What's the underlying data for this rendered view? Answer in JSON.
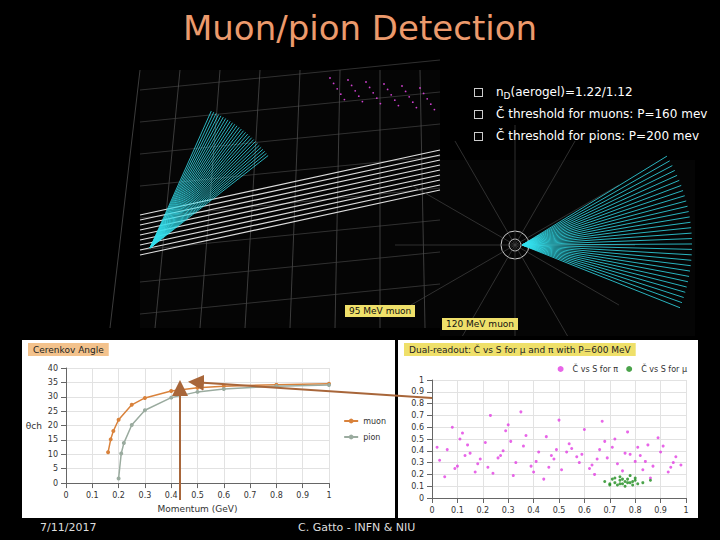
{
  "slide": {
    "title": "Muon/pion Detection",
    "bullets": [
      [
        {
          "text": "n"
        },
        {
          "sub": "D"
        },
        {
          "text": "(aerogel)=1.22/1.12"
        }
      ],
      [
        {
          "text": "Č threshold for muons: P=160 mev"
        }
      ],
      [
        {
          "text": "Č threshold for pions: P=200 mev"
        }
      ]
    ],
    "images": [
      {
        "caption": "95 MeV muon"
      },
      {
        "caption": "120 MeV muon"
      }
    ],
    "footer": {
      "date": "7/11/2017",
      "author": "C. Gatto - INFN & NIU"
    }
  },
  "chart_data": [
    {
      "type": "line",
      "title": "Cerenkov Angle",
      "xlabel": "Momentum (GeV)",
      "ylabel": "θch",
      "xlim": [
        0,
        1
      ],
      "xticks": [
        0,
        0.1,
        0.2,
        0.3,
        0.4,
        0.5,
        0.6,
        0.7,
        0.8,
        0.9,
        1
      ],
      "ylim": [
        0,
        40
      ],
      "yticks": [
        0,
        5,
        10,
        15,
        20,
        25,
        30,
        35,
        40
      ],
      "grid": true,
      "legend": "right",
      "series": [
        {
          "name": "muon",
          "color": "#d9823b",
          "marker": "circle",
          "x": [
            0.16,
            0.17,
            0.18,
            0.2,
            0.25,
            0.3,
            0.4,
            0.5,
            0.6,
            0.8,
            1.0
          ],
          "values": [
            10.7,
            15.2,
            18.1,
            22.0,
            27.2,
            29.6,
            32.0,
            33.1,
            33.7,
            34.2,
            34.5
          ]
        },
        {
          "name": "pion",
          "color": "#9aab9f",
          "marker": "circle",
          "x": [
            0.2,
            0.21,
            0.22,
            0.25,
            0.3,
            0.4,
            0.5,
            0.6,
            0.8,
            1.0
          ],
          "values": [
            1.6,
            10.3,
            13.9,
            20.2,
            25.3,
            29.7,
            31.7,
            32.7,
            33.7,
            34.1
          ]
        }
      ]
    },
    {
      "type": "scatter",
      "title": "Dual-readout: Č vs S for μ and π with P=600 MeV",
      "xlim": [
        0,
        1
      ],
      "xticks": [
        0,
        0.1,
        0.2,
        0.3,
        0.4,
        0.5,
        0.6,
        0.7,
        0.8,
        0.9,
        1
      ],
      "ylim": [
        0,
        1
      ],
      "yticks": [
        0,
        0.1,
        0.2,
        0.3,
        0.4,
        0.5,
        0.6,
        0.7,
        0.8,
        0.9,
        1
      ],
      "grid": true,
      "legend": "upper right",
      "series": [
        {
          "name": "Č vs S for π",
          "color": "#e23ee2",
          "x": [
            0.03,
            0.06,
            0.09,
            0.12,
            0.15,
            0.18,
            0.21,
            0.24,
            0.27,
            0.3,
            0.33,
            0.36,
            0.39,
            0.42,
            0.45,
            0.48,
            0.51,
            0.54,
            0.57,
            0.6,
            0.63,
            0.66,
            0.69,
            0.72,
            0.75,
            0.78,
            0.81,
            0.84,
            0.87,
            0.9,
            0.93,
            0.96,
            0.05,
            0.1,
            0.14,
            0.19,
            0.23,
            0.28,
            0.32,
            0.37,
            0.41,
            0.46,
            0.5,
            0.55,
            0.59,
            0.64,
            0.68,
            0.73,
            0.77,
            0.82,
            0.86,
            0.91,
            0.95,
            0.08,
            0.17,
            0.26,
            0.35,
            0.44,
            0.53,
            0.62,
            0.71,
            0.8,
            0.89,
            0.98,
            0.02,
            0.13,
            0.22,
            0.31,
            0.4,
            0.49,
            0.58,
            0.67,
            0.76,
            0.85,
            0.94,
            0.11,
            0.29,
            0.47,
            0.65,
            0.83
          ],
          "values": [
            0.32,
            0.41,
            0.25,
            0.55,
            0.38,
            0.29,
            0.47,
            0.21,
            0.36,
            0.62,
            0.3,
            0.44,
            0.27,
            0.39,
            0.52,
            0.33,
            0.24,
            0.46,
            0.35,
            0.58,
            0.28,
            0.41,
            0.34,
            0.5,
            0.23,
            0.37,
            0.43,
            0.31,
            0.27,
            0.39,
            0.22,
            0.35,
            0.18,
            0.27,
            0.45,
            0.33,
            0.7,
            0.4,
            0.19,
            0.53,
            0.31,
            0.26,
            0.66,
            0.42,
            0.37,
            0.2,
            0.48,
            0.29,
            0.56,
            0.36,
            0.17,
            0.44,
            0.3,
            0.6,
            0.22,
            0.34,
            0.73,
            0.16,
            0.39,
            0.25,
            0.43,
            0.31,
            0.51,
            0.28,
            0.43,
            0.36,
            0.26,
            0.48,
            0.22,
            0.41,
            0.3,
            0.65,
            0.38,
            0.45,
            0.26,
            0.5,
            0.57,
            0.36,
            0.33,
            0.24
          ]
        },
        {
          "name": "Č vs S for μ",
          "color": "#1e8c1e",
          "x": [
            0.68,
            0.7,
            0.71,
            0.72,
            0.73,
            0.74,
            0.74,
            0.75,
            0.76,
            0.76,
            0.77,
            0.78,
            0.78,
            0.79,
            0.8,
            0.81,
            0.72,
            0.75,
            0.79,
            0.83,
            0.7,
            0.77,
            0.74,
            0.8,
            0.86
          ],
          "values": [
            0.14,
            0.12,
            0.16,
            0.13,
            0.11,
            0.15,
            0.18,
            0.12,
            0.14,
            0.1,
            0.16,
            0.13,
            0.19,
            0.11,
            0.15,
            0.12,
            0.17,
            0.16,
            0.14,
            0.13,
            0.11,
            0.13,
            0.12,
            0.17,
            0.15
          ]
        }
      ]
    }
  ]
}
